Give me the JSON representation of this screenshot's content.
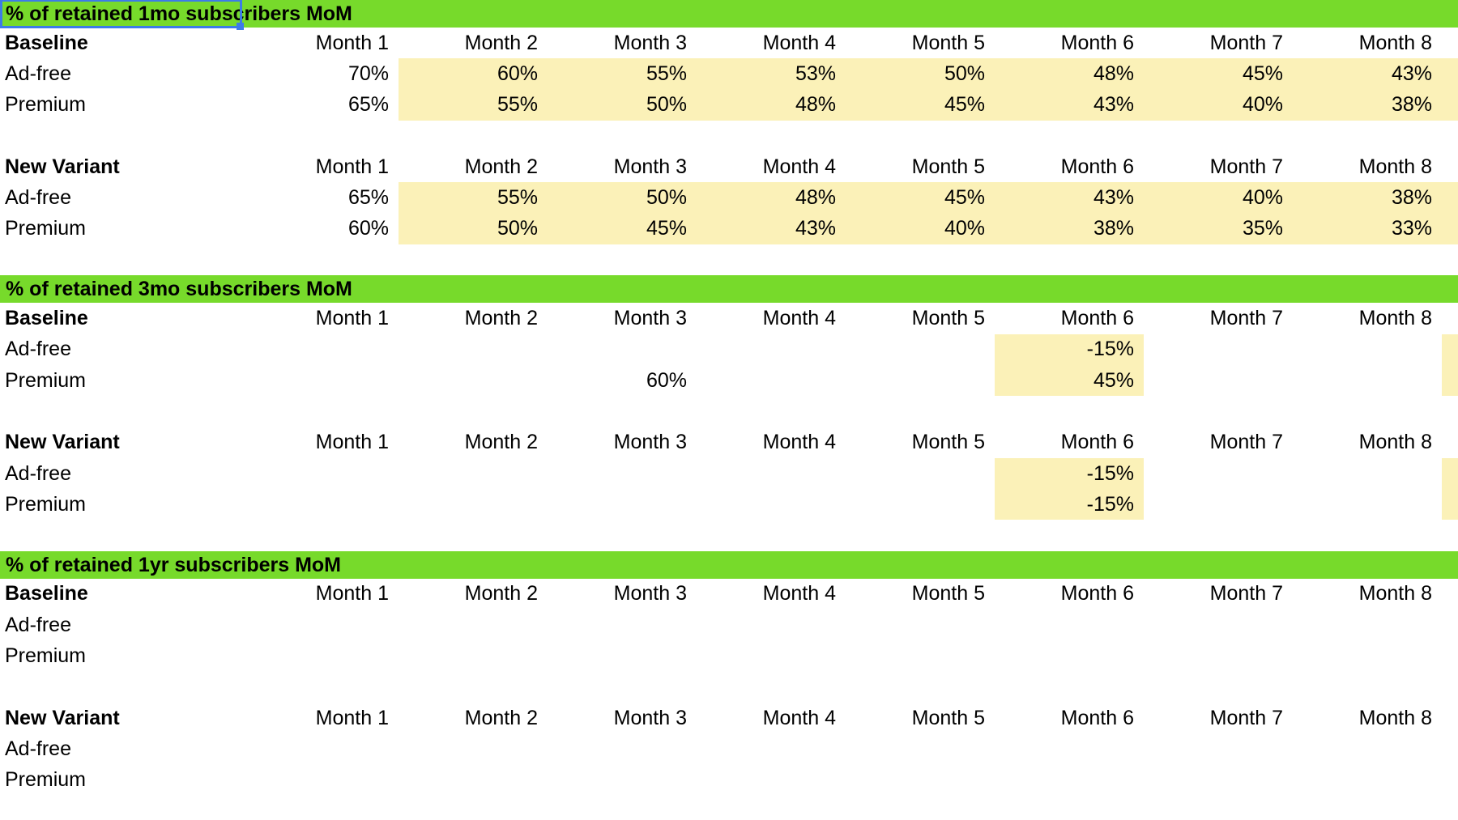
{
  "colors": {
    "section_header_bg": "#77da2b",
    "highlight_bg": "#fbf1b8",
    "selection_border": "#3d7be8",
    "text": "#000000",
    "canvas_bg": "#ffffff"
  },
  "months": [
    "Month 1",
    "Month 2",
    "Month 3",
    "Month 4",
    "Month 5",
    "Month 6",
    "Month 7",
    "Month 8"
  ],
  "sections": [
    {
      "title": "% of retained 1mo subscribers MoM",
      "title_cell_selected": true,
      "tables": [
        {
          "name": "Baseline",
          "rows": [
            {
              "label": "Ad-free",
              "values": [
                "70%",
                "60%",
                "55%",
                "53%",
                "50%",
                "48%",
                "45%",
                "43%"
              ],
              "highlights": [
                false,
                true,
                true,
                true,
                true,
                true,
                true,
                true
              ],
              "overflow_highlight": true
            },
            {
              "label": "Premium",
              "values": [
                "65%",
                "55%",
                "50%",
                "48%",
                "45%",
                "43%",
                "40%",
                "38%"
              ],
              "highlights": [
                false,
                true,
                true,
                true,
                true,
                true,
                true,
                true
              ],
              "overflow_highlight": true
            }
          ]
        },
        {
          "name": "New Variant",
          "rows": [
            {
              "label": "Ad-free",
              "values": [
                "65%",
                "55%",
                "50%",
                "48%",
                "45%",
                "43%",
                "40%",
                "38%"
              ],
              "highlights": [
                false,
                true,
                true,
                true,
                true,
                true,
                true,
                true
              ],
              "overflow_highlight": true
            },
            {
              "label": "Premium",
              "values": [
                "60%",
                "50%",
                "45%",
                "43%",
                "40%",
                "38%",
                "35%",
                "33%"
              ],
              "highlights": [
                false,
                true,
                true,
                true,
                true,
                true,
                true,
                true
              ],
              "overflow_highlight": true
            }
          ]
        }
      ]
    },
    {
      "title": "% of retained 3mo subscribers MoM",
      "title_cell_selected": false,
      "tables": [
        {
          "name": "Baseline",
          "rows": [
            {
              "label": "Ad-free",
              "values": [
                "",
                "",
                "",
                "",
                "",
                "-15%",
                "",
                ""
              ],
              "highlights": [
                false,
                false,
                false,
                false,
                false,
                true,
                false,
                false
              ],
              "overflow_highlight": true
            },
            {
              "label": "Premium",
              "values": [
                "",
                "",
                "60%",
                "",
                "",
                "45%",
                "",
                ""
              ],
              "highlights": [
                false,
                false,
                false,
                false,
                false,
                true,
                false,
                false
              ],
              "overflow_highlight": true
            }
          ]
        },
        {
          "name": "New Variant",
          "rows": [
            {
              "label": "Ad-free",
              "values": [
                "",
                "",
                "",
                "",
                "",
                "-15%",
                "",
                ""
              ],
              "highlights": [
                false,
                false,
                false,
                false,
                false,
                true,
                false,
                false
              ],
              "overflow_highlight": true
            },
            {
              "label": "Premium",
              "values": [
                "",
                "",
                "",
                "",
                "",
                "-15%",
                "",
                ""
              ],
              "highlights": [
                false,
                false,
                false,
                false,
                false,
                true,
                false,
                false
              ],
              "overflow_highlight": true
            }
          ]
        }
      ]
    },
    {
      "title": "% of retained 1yr subscribers MoM",
      "title_cell_selected": false,
      "tables": [
        {
          "name": "Baseline",
          "rows": [
            {
              "label": "Ad-free",
              "values": [
                "",
                "",
                "",
                "",
                "",
                "",
                "",
                ""
              ],
              "highlights": [
                false,
                false,
                false,
                false,
                false,
                false,
                false,
                false
              ],
              "overflow_highlight": false
            },
            {
              "label": "Premium",
              "values": [
                "",
                "",
                "",
                "",
                "",
                "",
                "",
                ""
              ],
              "highlights": [
                false,
                false,
                false,
                false,
                false,
                false,
                false,
                false
              ],
              "overflow_highlight": false
            }
          ]
        },
        {
          "name": "New Variant",
          "rows": [
            {
              "label": "Ad-free",
              "values": [
                "",
                "",
                "",
                "",
                "",
                "",
                "",
                ""
              ],
              "highlights": [
                false,
                false,
                false,
                false,
                false,
                false,
                false,
                false
              ],
              "overflow_highlight": false
            },
            {
              "label": "Premium",
              "values": [
                "",
                "",
                "",
                "",
                "",
                "",
                "",
                ""
              ],
              "highlights": [
                false,
                false,
                false,
                false,
                false,
                false,
                false,
                false
              ],
              "overflow_highlight": false
            }
          ]
        }
      ]
    }
  ]
}
